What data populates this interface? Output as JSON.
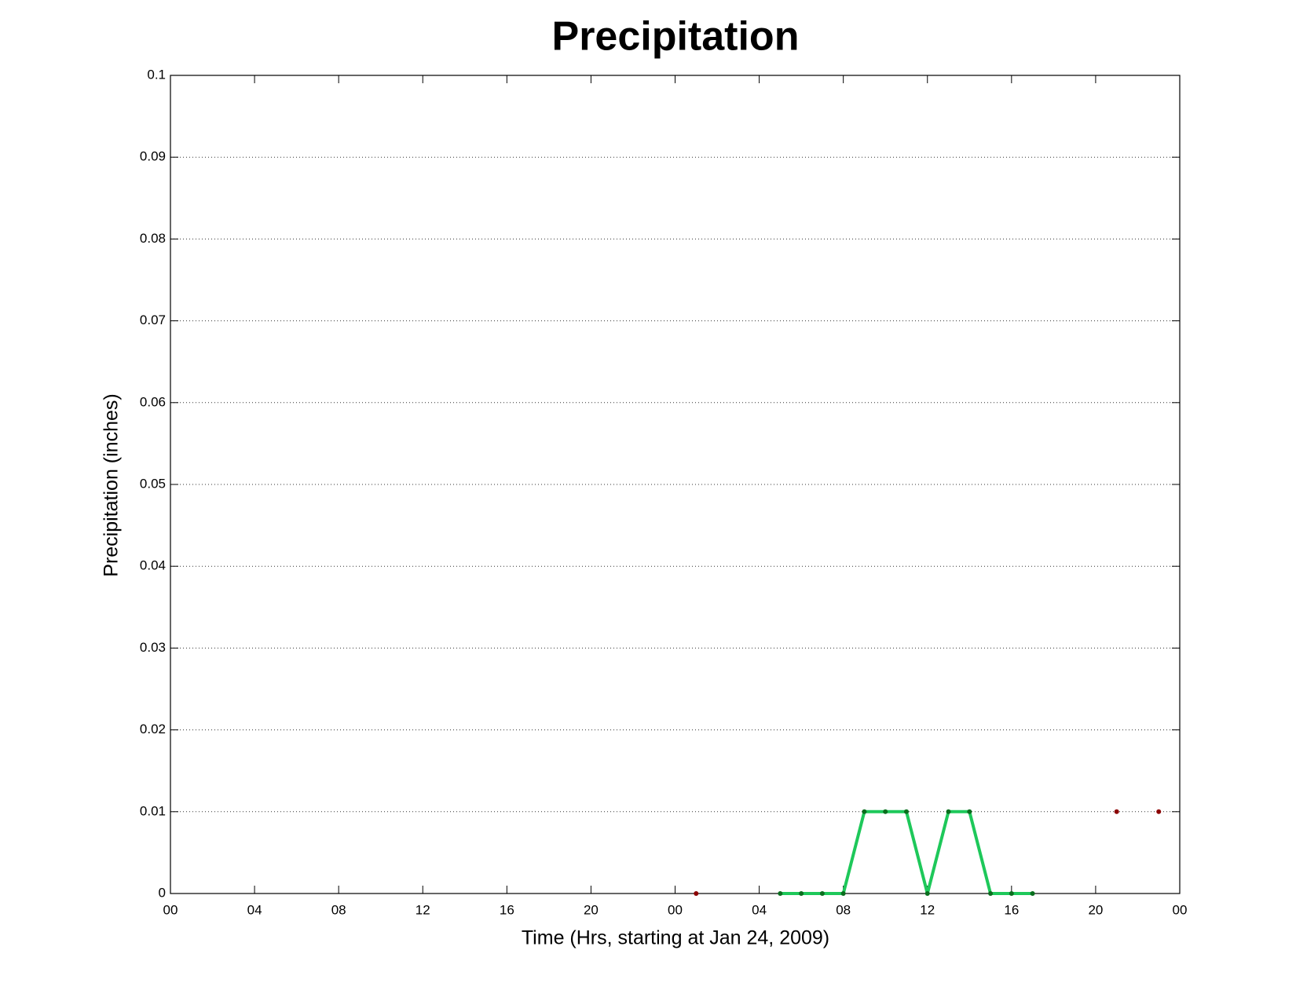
{
  "chart_data": {
    "type": "line",
    "title": "Precipitation",
    "x_label": "Time (Hrs, starting at Jan 24, 2009)",
    "y_label": "Precipitation (inches)",
    "xlim": [
      0,
      48
    ],
    "xticks": [
      {
        "value": 0,
        "label": "00"
      },
      {
        "value": 4,
        "label": "04"
      },
      {
        "value": 8,
        "label": "08"
      },
      {
        "value": 12,
        "label": "12"
      },
      {
        "value": 16,
        "label": "16"
      },
      {
        "value": 20,
        "label": "20"
      },
      {
        "value": 24,
        "label": "00"
      },
      {
        "value": 28,
        "label": "04"
      },
      {
        "value": 32,
        "label": "08"
      },
      {
        "value": 36,
        "label": "12"
      },
      {
        "value": 40,
        "label": "16"
      },
      {
        "value": 44,
        "label": "20"
      },
      {
        "value": 48,
        "label": "00"
      }
    ],
    "ylim": [
      0,
      0.1
    ],
    "yticks": [
      0,
      0.01,
      0.02,
      0.03,
      0.04,
      0.05,
      0.06,
      0.07,
      0.08,
      0.09,
      0.1
    ],
    "grid": true,
    "series": [
      {
        "color": "#1ec85a",
        "marker_color": "#0a6e1e",
        "line": true,
        "x": [
          29,
          30,
          31,
          32,
          33,
          34,
          35,
          36,
          37,
          38,
          39,
          40,
          41
        ],
        "values": [
          0,
          0,
          0,
          0,
          0.01,
          0.01,
          0.01,
          0,
          0.01,
          0.01,
          0,
          0,
          0
        ]
      },
      {
        "color": "#8b0000",
        "marker_color": "#8b0000",
        "line": false,
        "x": [
          25,
          45,
          47
        ],
        "values": [
          0,
          0.01,
          0.01
        ]
      }
    ]
  }
}
